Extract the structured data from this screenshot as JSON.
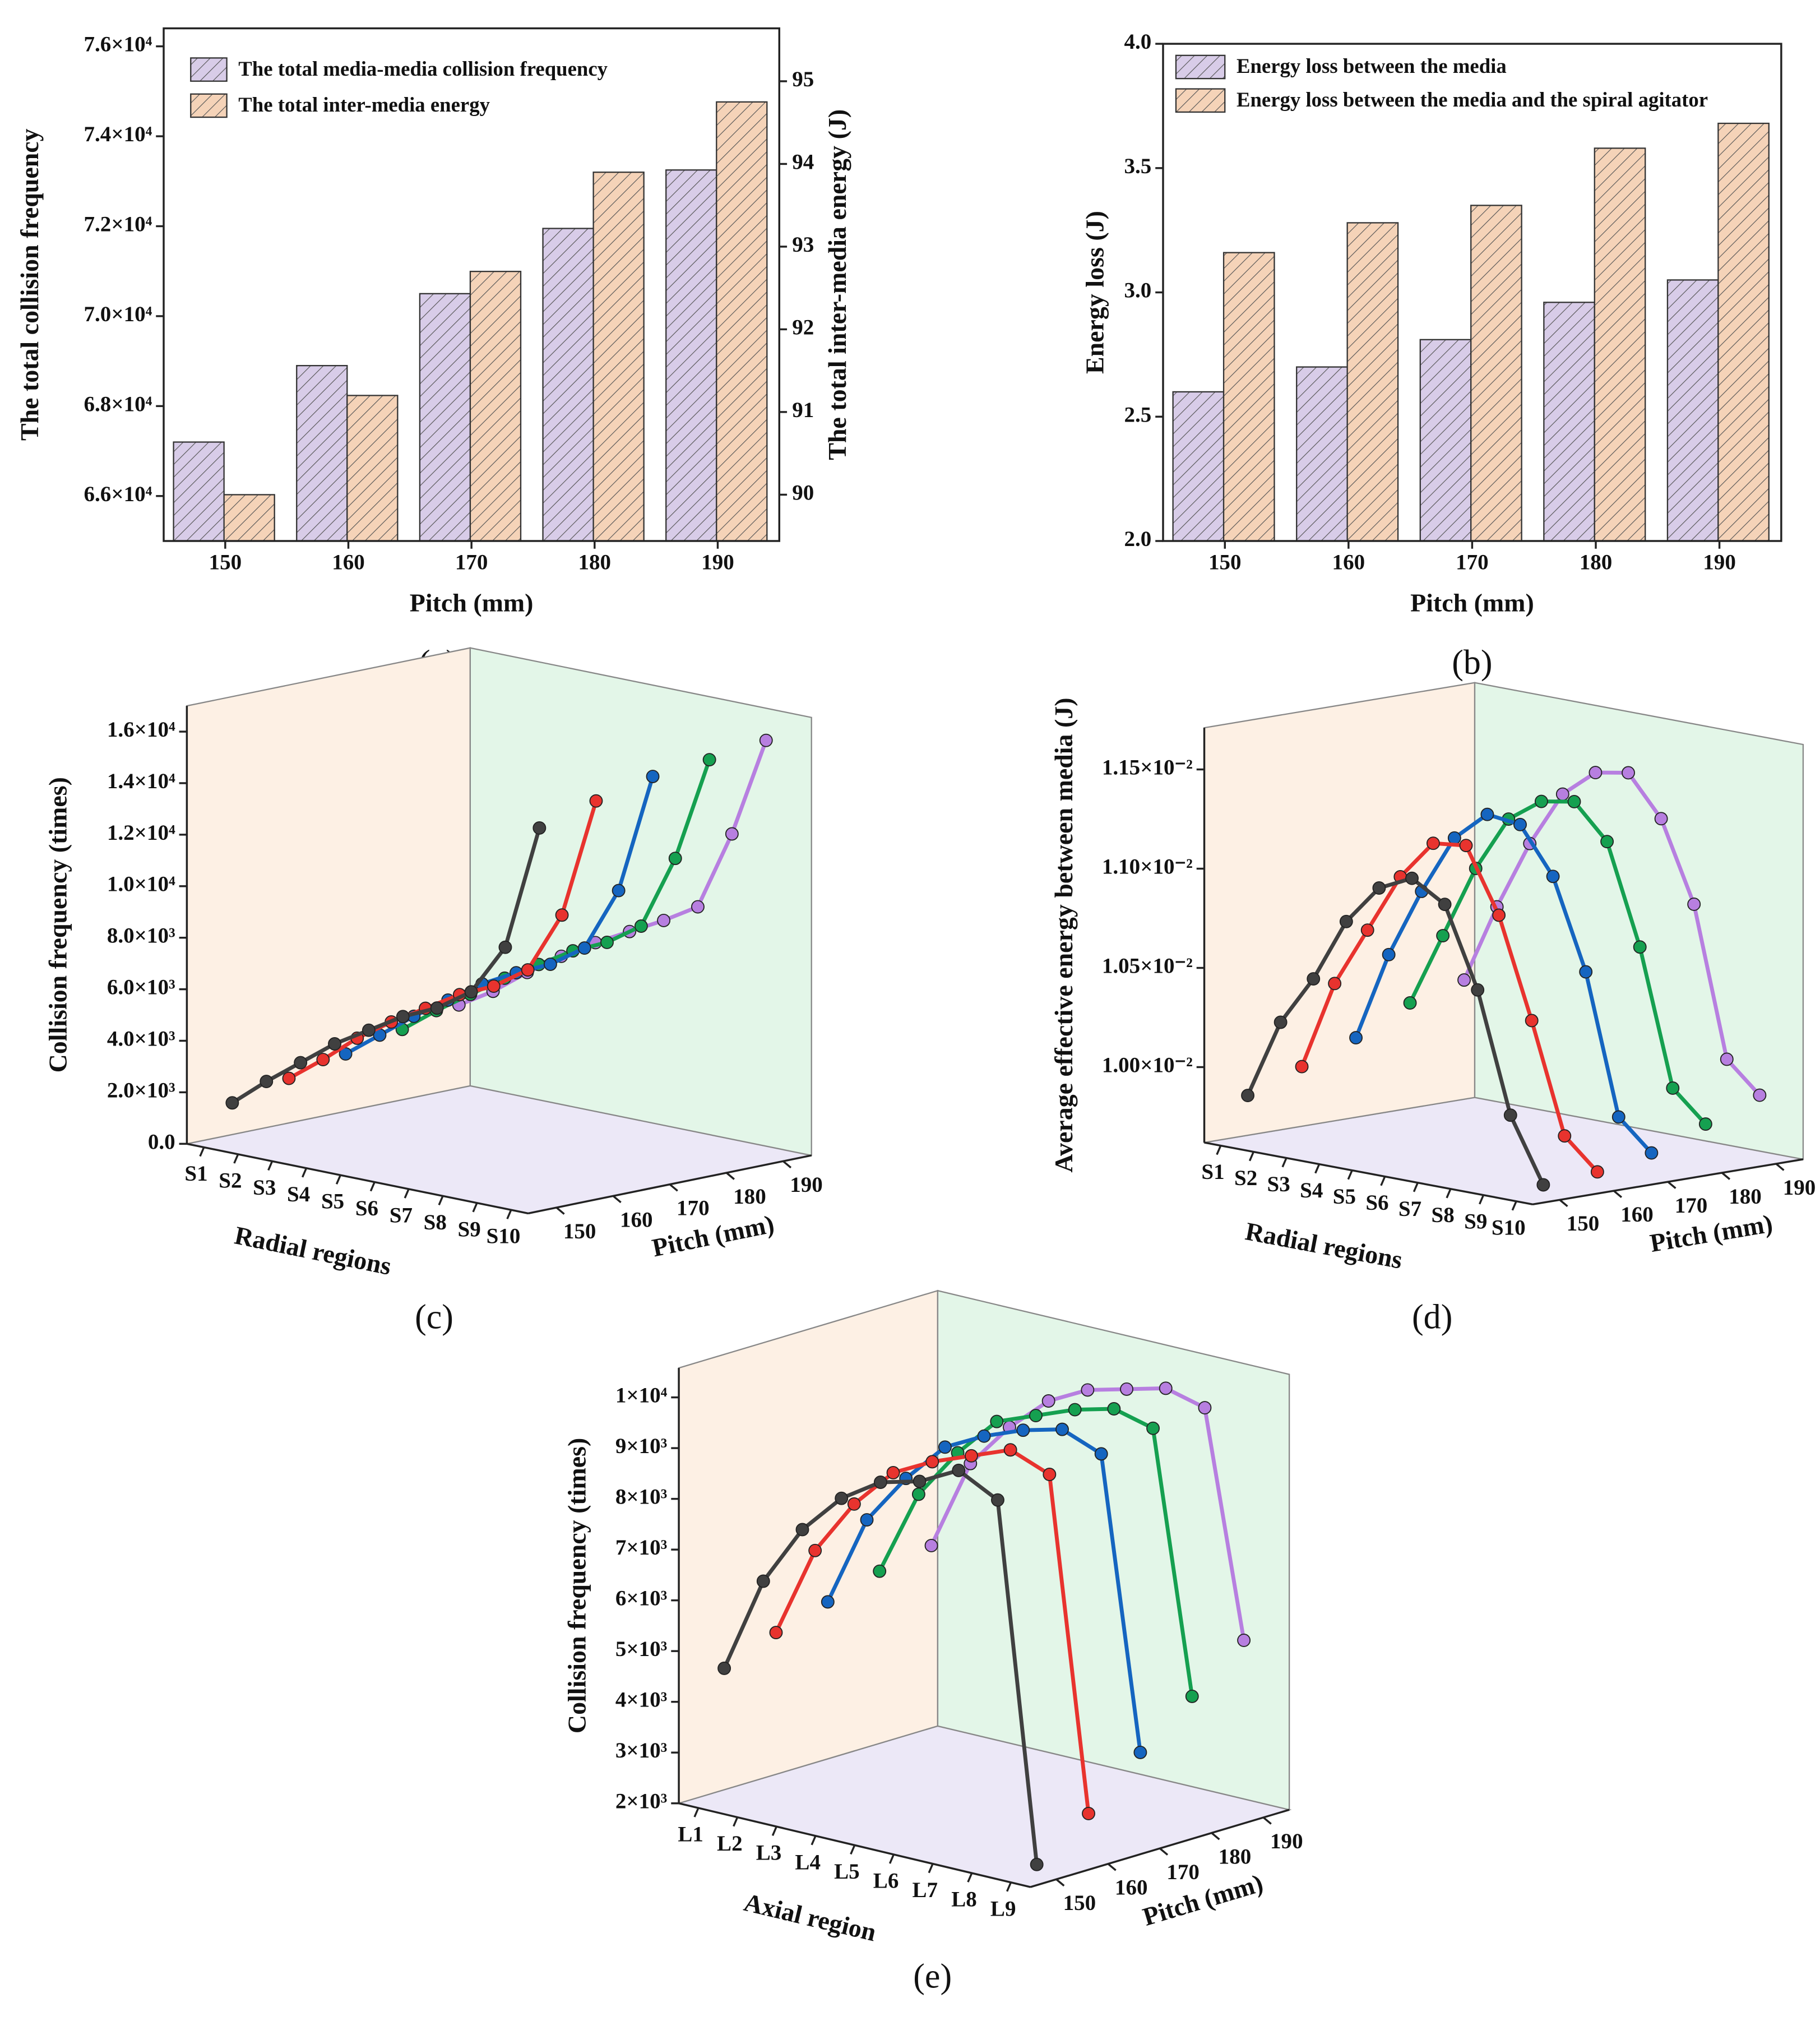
{
  "chart_data": [
    {
      "type": "bar",
      "panel_label": "(a)",
      "xlabel": "Pitch (mm)",
      "ylabel": "The total collision frequency",
      "y2label": "The total inter-media energy (J)",
      "categories": [
        "150",
        "160",
        "170",
        "180",
        "190"
      ],
      "series": [
        {
          "name": "The total media-media collision frequency",
          "color": "#d8cce8",
          "values": [
            67200,
            68900,
            70500,
            71950,
            73250
          ]
        },
        {
          "name": "The total inter-media energy",
          "color": "#f5d3b8",
          "axis": "y2",
          "values": [
            90.0,
            91.2,
            92.7,
            93.9,
            94.75
          ]
        }
      ],
      "ylim": [
        65000,
        76400
      ],
      "yticks": [
        {
          "value": 66000,
          "label": "6.6×10⁴"
        },
        {
          "value": 68000,
          "label": "6.8×10⁴"
        },
        {
          "value": 70000,
          "label": "7.0×10⁴"
        },
        {
          "value": 72000,
          "label": "7.2×10⁴"
        },
        {
          "value": 74000,
          "label": "7.4×10⁴"
        },
        {
          "value": 76000,
          "label": "7.6×10⁴"
        }
      ],
      "y2lim": [
        89.44,
        95.64
      ],
      "y2ticks": [
        90,
        91,
        92,
        93,
        94,
        95
      ],
      "hatch": true
    },
    {
      "type": "bar",
      "panel_label": "(b)",
      "xlabel": "Pitch (mm)",
      "ylabel": "Energy loss (J)",
      "categories": [
        "150",
        "160",
        "170",
        "180",
        "190"
      ],
      "series": [
        {
          "name": "Energy loss between the media",
          "color": "#d8cce8",
          "values": [
            2.6,
            2.7,
            2.81,
            2.96,
            3.05
          ]
        },
        {
          "name": "Energy loss between the media and the spiral agitator",
          "color": "#f5d3b8",
          "values": [
            3.16,
            3.28,
            3.35,
            3.58,
            3.68
          ]
        }
      ],
      "ylim": [
        2.0,
        4.0
      ],
      "yticks": [
        {
          "value": 2,
          "label": "2.0"
        },
        2.5,
        {
          "value": 3,
          "label": "3.0"
        },
        3.5,
        {
          "value": 4,
          "label": "4.0"
        }
      ],
      "hatch": true
    },
    {
      "type": "line3d",
      "panel_label": "(c)",
      "xlabel": "Radial regions",
      "depth_label": "Pitch (mm)",
      "zlabel": "Collision frequency (times)",
      "categories": [
        "S1",
        "S2",
        "S3",
        "S4",
        "S5",
        "S6",
        "S7",
        "S8",
        "S9",
        "S10"
      ],
      "depth": [
        150,
        160,
        170,
        180,
        190
      ],
      "depthlim": [
        145,
        195
      ],
      "series": [
        {
          "color": "#404040",
          "values": [
            1500,
            2600,
            3600,
            4600,
            5400,
            6200,
            6800,
            7700,
            9700,
            14600
          ]
        },
        {
          "color": "#e8332e",
          "values": [
            2000,
            3000,
            4100,
            5000,
            5800,
            6600,
            7200,
            8100,
            10500,
            15200
          ]
        },
        {
          "color": "#1565c0",
          "values": [
            2500,
            3500,
            4500,
            5400,
            6300,
            7000,
            7600,
            8500,
            11000,
            15700
          ]
        },
        {
          "color": "#15a050",
          "values": [
            3000,
            4000,
            4900,
            5800,
            6600,
            7400,
            8000,
            8900,
            11800,
            15900
          ]
        },
        {
          "color": "#b77fe0",
          "values": [
            3500,
            4300,
            5300,
            6200,
            7000,
            7700,
            8400,
            9200,
            12300,
            16200
          ]
        }
      ],
      "zlim": [
        0,
        17000
      ],
      "zticks": [
        {
          "value": 0,
          "label": "0.0"
        },
        {
          "value": 2000,
          "label": "2.0×10³"
        },
        {
          "value": 4000,
          "label": "4.0×10³"
        },
        {
          "value": 6000,
          "label": "6.0×10³"
        },
        {
          "value": 8000,
          "label": "8.0×10³"
        },
        {
          "value": 10000,
          "label": "1.0×10⁴"
        },
        {
          "value": 12000,
          "label": "1.2×10⁴"
        },
        {
          "value": 14000,
          "label": "1.4×10⁴"
        },
        {
          "value": 16000,
          "label": "1.6×10⁴"
        }
      ]
    },
    {
      "type": "line3d",
      "panel_label": "(d)",
      "xlabel": "Radial regions",
      "depth_label": "Pitch (mm)",
      "zlabel": "Average effective energy between media (J)",
      "categories": [
        "S1",
        "S2",
        "S3",
        "S4",
        "S5",
        "S6",
        "S7",
        "S8",
        "S9",
        "S10"
      ],
      "depth": [
        150,
        160,
        170,
        180,
        190
      ],
      "depthlim": [
        145,
        195
      ],
      "series": [
        {
          "color": "#404040",
          "values": [
            0.00985,
            0.01025,
            0.0105,
            0.01082,
            0.01102,
            0.0111,
            0.011,
            0.0106,
            0.01,
            0.00968
          ]
        },
        {
          "color": "#e8332e",
          "values": [
            0.00995,
            0.0104,
            0.0107,
            0.011,
            0.0112,
            0.01122,
            0.0109,
            0.0104,
            0.00985,
            0.0097
          ]
        },
        {
          "color": "#1565c0",
          "values": [
            0.01005,
            0.0105,
            0.01085,
            0.01115,
            0.0113,
            0.01128,
            0.01105,
            0.0106,
            0.0099,
            0.00975
          ]
        },
        {
          "color": "#15a050",
          "values": [
            0.01018,
            0.01055,
            0.01092,
            0.0112,
            0.01132,
            0.01135,
            0.01118,
            0.01068,
            0.01,
            0.00985
          ]
        },
        {
          "color": "#b77fe0",
          "values": [
            0.01025,
            0.01065,
            0.011,
            0.01128,
            0.01142,
            0.01145,
            0.01125,
            0.01085,
            0.0101,
            0.00995
          ]
        }
      ],
      "zlim": [
        0.00962,
        0.01171
      ],
      "zticks": [
        {
          "value": 0.01,
          "label": "1.00×10⁻²"
        },
        {
          "value": 0.0105,
          "label": "1.05×10⁻²"
        },
        {
          "value": 0.011,
          "label": "1.10×10⁻²"
        },
        {
          "value": 0.0115,
          "label": "1.15×10⁻²"
        }
      ]
    },
    {
      "type": "line3d",
      "panel_label": "(e)",
      "xlabel": "Axial region",
      "depth_label": "Pitch (mm)",
      "zlabel": "Collision frequency (times)",
      "categories": [
        "L1",
        "L2",
        "L3",
        "L4",
        "L5",
        "L6",
        "L7",
        "L8",
        "L9"
      ],
      "depth": [
        150,
        160,
        170,
        180,
        190
      ],
      "depthlim": [
        145,
        195
      ],
      "series": [
        {
          "color": "#404040",
          "values": [
            4600,
            6500,
            7700,
            8500,
            9000,
            9200,
            9600,
            9200,
            2200
          ]
        },
        {
          "color": "#e8332e",
          "values": [
            5000,
            6800,
            7900,
            8700,
            9100,
            9400,
            9700,
            9400,
            2900
          ]
        },
        {
          "color": "#1565c0",
          "values": [
            5300,
            7100,
            8100,
            8900,
            9300,
            9600,
            9800,
            9500,
            3800
          ]
        },
        {
          "color": "#15a050",
          "values": [
            5600,
            7300,
            8300,
            9100,
            9400,
            9700,
            9900,
            9700,
            4600
          ]
        },
        {
          "color": "#b77fe0",
          "values": [
            5800,
            7600,
            8500,
            9200,
            9600,
            9800,
            10000,
            9800,
            5400
          ]
        }
      ],
      "zlim": [
        2000,
        10580
      ],
      "zticks": [
        {
          "value": 2000,
          "label": "2×10³"
        },
        {
          "value": 3000,
          "label": "3×10³"
        },
        {
          "value": 4000,
          "label": "4×10³"
        },
        {
          "value": 5000,
          "label": "5×10³"
        },
        {
          "value": 6000,
          "label": "6×10³"
        },
        {
          "value": 7000,
          "label": "7×10³"
        },
        {
          "value": 8000,
          "label": "8×10³"
        },
        {
          "value": 9000,
          "label": "9×10³"
        },
        {
          "value": 10000,
          "label": "1×10⁴"
        }
      ]
    }
  ]
}
